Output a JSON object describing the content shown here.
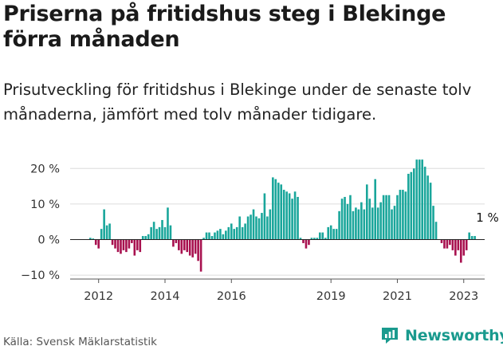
{
  "header": {
    "title": "Priserna på fritidshus steg i Blekinge förra månaden",
    "subtitle": "Prisutveckling för fritidshus i Blekinge under de senaste tolv månaderna, jämfört med tolv månader tidigare."
  },
  "footer": {
    "source": "Källa: Svensk Mäklarstatistik",
    "brand": "Newsworthy"
  },
  "colors": {
    "positive": "#1aa69b",
    "negative": "#a8114f",
    "grid": "#dcdcdc",
    "axis": "#555555",
    "brand": "#1a9a8e"
  },
  "icons": {
    "brand_logo": "newsworthy-logo-icon"
  },
  "chart_data": {
    "type": "bar",
    "x_start": "2011-10",
    "x_interval": "month",
    "ylim": [
      -11,
      22
    ],
    "y_ticks": [
      20,
      10,
      0,
      -10
    ],
    "y_tick_labels": [
      "20 %",
      "10 %",
      "0 %",
      "−10 %"
    ],
    "x_tick_labels": [
      {
        "label": "2012",
        "x": "2012-01"
      },
      {
        "label": "2014",
        "x": "2014-01"
      },
      {
        "label": "2016",
        "x": "2016-01"
      },
      {
        "label": "2019",
        "x": "2019-01"
      },
      {
        "label": "2021",
        "x": "2021-01"
      },
      {
        "label": "2023",
        "x": "2023-01"
      }
    ],
    "annotation": {
      "text": "1 %",
      "x": "2023-09"
    },
    "grid": true,
    "values": [
      0.5,
      0.3,
      -1.5,
      -2.5,
      3.0,
      8.5,
      4.0,
      4.5,
      -1.5,
      -2.5,
      -3.5,
      -4.0,
      -3.0,
      -3.5,
      -2.5,
      -1.0,
      -4.5,
      -3.0,
      -3.5,
      1.0,
      1.0,
      1.5,
      3.5,
      5.0,
      3.0,
      3.5,
      5.5,
      3.5,
      9.0,
      4.0,
      -2.0,
      -1.0,
      -3.0,
      -4.0,
      -3.0,
      -3.5,
      -4.5,
      -5.0,
      -4.0,
      -6.0,
      -9.0,
      0.5,
      2.0,
      2.0,
      1.0,
      2.0,
      2.5,
      3.0,
      1.5,
      2.5,
      3.5,
      4.5,
      3.0,
      3.5,
      6.5,
      3.5,
      4.5,
      6.5,
      7.0,
      8.5,
      6.5,
      6.0,
      7.5,
      13.0,
      6.5,
      8.5,
      17.5,
      17.0,
      16.0,
      15.5,
      14.0,
      13.5,
      13.0,
      11.5,
      13.5,
      12.0,
      0.5,
      -1.0,
      -2.5,
      -1.5,
      0.5,
      0.5,
      0.5,
      2.0,
      2.0,
      0.5,
      3.5,
      4.0,
      3.0,
      3.0,
      8.0,
      11.5,
      12.0,
      10.0,
      12.5,
      8.0,
      9.0,
      8.5,
      10.5,
      8.5,
      15.5,
      11.5,
      9.0,
      17.0,
      9.0,
      10.5,
      12.5,
      12.5,
      12.5,
      8.5,
      9.5,
      12.5,
      14.0,
      14.0,
      13.5,
      18.5,
      19.0,
      20.0,
      22.5,
      22.5,
      22.5,
      20.5,
      18.0,
      16.0,
      9.5,
      5.0,
      null,
      -1.0,
      -2.5,
      -2.5,
      -1.5,
      -3.0,
      -4.5,
      -3.0,
      -6.5,
      -4.5,
      -3.0,
      2.0,
      1.0,
      1.0
    ]
  }
}
